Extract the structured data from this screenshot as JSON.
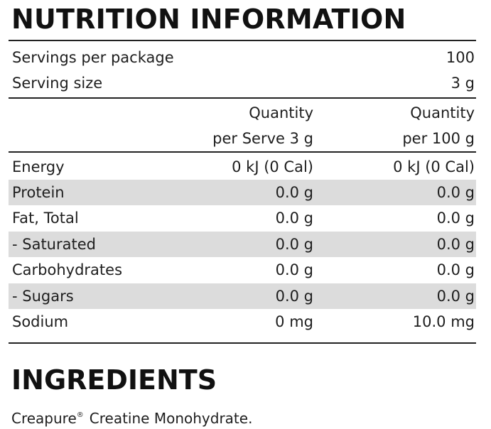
{
  "panel": {
    "title": "NUTRITION INFORMATION",
    "servings_per_package_label": "Servings per package",
    "servings_per_package_value": "100",
    "serving_size_label": "Serving size",
    "serving_size_value": "3 g"
  },
  "columns": {
    "per_serve_line1": "Quantity",
    "per_serve_line2": "per Serve 3 g",
    "per_100g_line1": "Quantity",
    "per_100g_line2": "per 100 g"
  },
  "rows": [
    {
      "label": "Energy",
      "per_serve": "0 kJ (0 Cal)",
      "per_100g": "0 kJ (0 Cal)"
    },
    {
      "label": "Protein",
      "per_serve": "0.0 g",
      "per_100g": "0.0 g"
    },
    {
      "label": "Fat, Total",
      "per_serve": "0.0 g",
      "per_100g": "0.0 g"
    },
    {
      "label": "- Saturated",
      "per_serve": "0.0 g",
      "per_100g": "0.0 g"
    },
    {
      "label": "Carbohydrates",
      "per_serve": "0.0 g",
      "per_100g": "0.0 g"
    },
    {
      "label": "- Sugars",
      "per_serve": "0.0 g",
      "per_100g": "0.0 g"
    },
    {
      "label": "Sodium",
      "per_serve": "0 mg",
      "per_100g": "10.0 mg"
    }
  ],
  "ingredients": {
    "title": "INGREDIENTS",
    "brand": "Creapure",
    "registered_mark": "®",
    "text": "Creatine Monohydrate."
  },
  "colors": {
    "shaded_row": "#dcdcdc",
    "rule": "#222222",
    "text": "#1e1e1e"
  }
}
